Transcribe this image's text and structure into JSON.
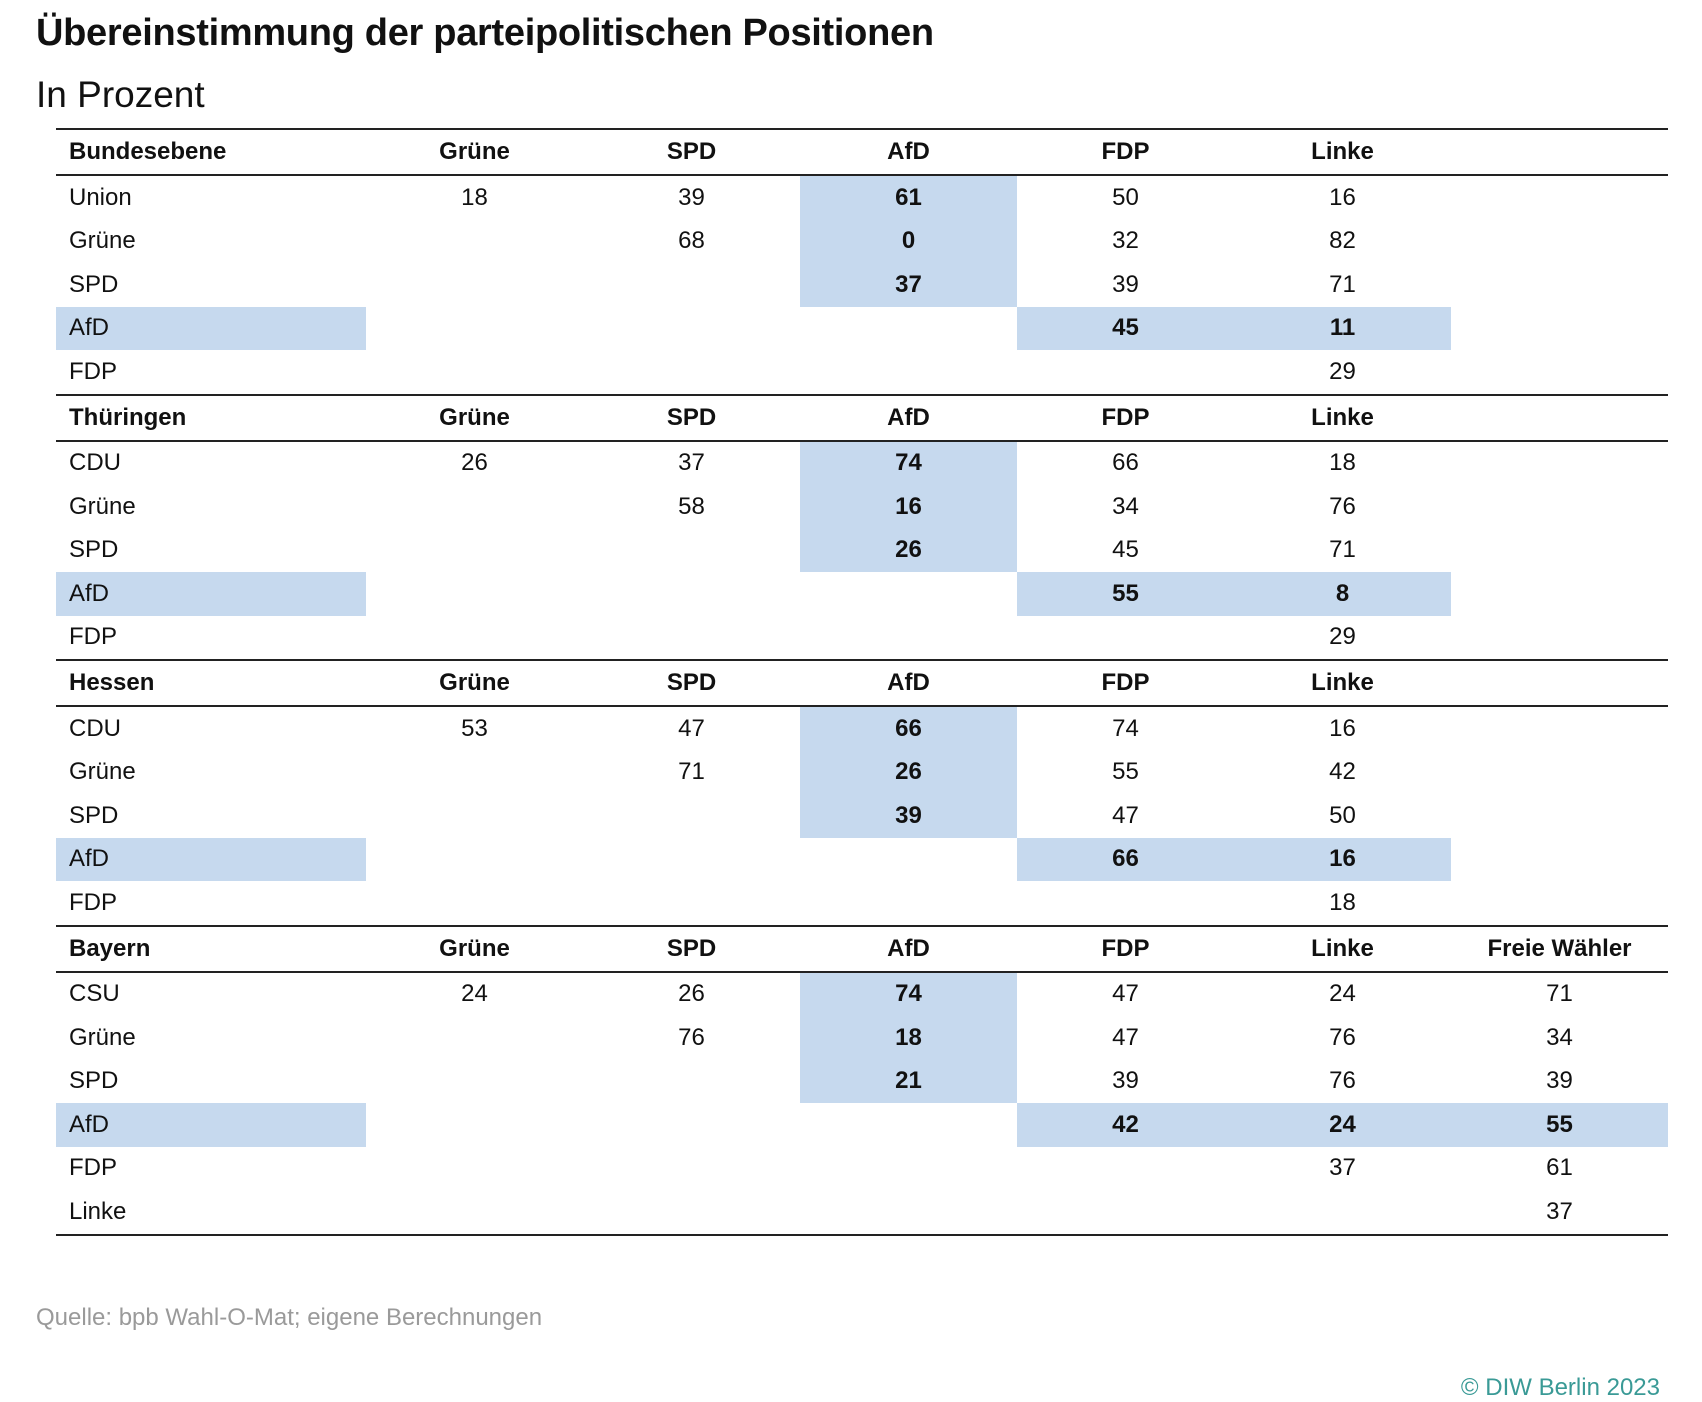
{
  "title": "Übereinstimmung der parteipolitischen Positionen",
  "subtitle": "In Prozent",
  "highlight_color": "#c6d9ee",
  "sections": [
    {
      "name": "Bundesebene",
      "columns": [
        "Grüne",
        "SPD",
        "AfD",
        "FDP",
        "Linke",
        ""
      ],
      "rows": [
        {
          "label": "Union",
          "values": [
            "18",
            "39",
            "61",
            "50",
            "16",
            ""
          ]
        },
        {
          "label": "Grüne",
          "values": [
            "",
            "68",
            "0",
            "32",
            "82",
            ""
          ]
        },
        {
          "label": "SPD",
          "values": [
            "",
            "",
            "37",
            "39",
            "71",
            ""
          ]
        },
        {
          "label": "AfD",
          "values": [
            "",
            "",
            "",
            "45",
            "11",
            ""
          ]
        },
        {
          "label": "FDP",
          "values": [
            "",
            "",
            "",
            "",
            "29",
            ""
          ]
        }
      ]
    },
    {
      "name": "Thüringen",
      "columns": [
        "Grüne",
        "SPD",
        "AfD",
        "FDP",
        "Linke",
        ""
      ],
      "rows": [
        {
          "label": "CDU",
          "values": [
            "26",
            "37",
            "74",
            "66",
            "18",
            ""
          ]
        },
        {
          "label": "Grüne",
          "values": [
            "",
            "58",
            "16",
            "34",
            "76",
            ""
          ]
        },
        {
          "label": "SPD",
          "values": [
            "",
            "",
            "26",
            "45",
            "71",
            ""
          ]
        },
        {
          "label": "AfD",
          "values": [
            "",
            "",
            "",
            "55",
            "8",
            ""
          ]
        },
        {
          "label": "FDP",
          "values": [
            "",
            "",
            "",
            "",
            "29",
            ""
          ]
        }
      ]
    },
    {
      "name": "Hessen",
      "columns": [
        "Grüne",
        "SPD",
        "AfD",
        "FDP",
        "Linke",
        ""
      ],
      "rows": [
        {
          "label": "CDU",
          "values": [
            "53",
            "47",
            "66",
            "74",
            "16",
            ""
          ]
        },
        {
          "label": "Grüne",
          "values": [
            "",
            "71",
            "26",
            "55",
            "42",
            ""
          ]
        },
        {
          "label": "SPD",
          "values": [
            "",
            "",
            "39",
            "47",
            "50",
            ""
          ]
        },
        {
          "label": "AfD",
          "values": [
            "",
            "",
            "",
            "66",
            "16",
            ""
          ]
        },
        {
          "label": "FDP",
          "values": [
            "",
            "",
            "",
            "",
            "18",
            ""
          ]
        }
      ]
    },
    {
      "name": "Bayern",
      "columns": [
        "Grüne",
        "SPD",
        "AfD",
        "FDP",
        "Linke",
        "Freie Wähler"
      ],
      "rows": [
        {
          "label": "CSU",
          "values": [
            "24",
            "26",
            "74",
            "47",
            "24",
            "71"
          ]
        },
        {
          "label": "Grüne",
          "values": [
            "",
            "76",
            "18",
            "47",
            "76",
            "34"
          ]
        },
        {
          "label": "SPD",
          "values": [
            "",
            "",
            "21",
            "39",
            "76",
            "39"
          ]
        },
        {
          "label": "AfD",
          "values": [
            "",
            "",
            "",
            "42",
            "24",
            "55"
          ]
        },
        {
          "label": "FDP",
          "values": [
            "",
            "",
            "",
            "",
            "37",
            "61"
          ]
        },
        {
          "label": "Linke",
          "values": [
            "",
            "",
            "",
            "",
            "",
            "37"
          ]
        }
      ]
    }
  ],
  "source": "Quelle: bpb Wahl-O-Mat; eigene Berechnungen",
  "copyright": "© DIW Berlin 2023"
}
